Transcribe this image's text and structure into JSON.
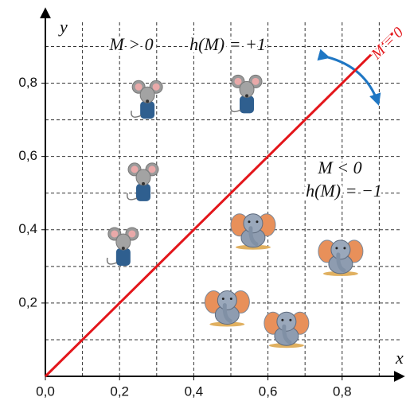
{
  "chart_data": {
    "type": "scatter",
    "x_label": "x",
    "y_label": "y",
    "xlim": [
      0,
      0.97
    ],
    "ylim": [
      0,
      0.99
    ],
    "xticks": [
      {
        "value": 0,
        "label": "0,0"
      },
      {
        "value": 0.2,
        "label": "0,2"
      },
      {
        "value": 0.4,
        "label": "0,4"
      },
      {
        "value": 0.6,
        "label": "0,6"
      },
      {
        "value": 0.8,
        "label": "0,8"
      }
    ],
    "yticks": [
      {
        "value": 0.2,
        "label": "0,2"
      },
      {
        "value": 0.4,
        "label": "0,4"
      },
      {
        "value": 0.6,
        "label": "0,6"
      },
      {
        "value": 0.8,
        "label": "0,8"
      }
    ],
    "xgrid": [
      0.1,
      0.2,
      0.3,
      0.4,
      0.5,
      0.6,
      0.7,
      0.8,
      0.9
    ],
    "ygrid": [
      0.1,
      0.2,
      0.3,
      0.4,
      0.5,
      0.6,
      0.7,
      0.8,
      0.9
    ],
    "series": [
      {
        "marker": "mouse",
        "x": [
          0.275,
          0.543,
          0.264,
          0.21
        ],
        "values": [
          0.755,
          0.77,
          0.53,
          0.354
        ]
      },
      {
        "marker": "elephant",
        "x": [
          0.56,
          0.796,
          0.49,
          0.65
        ],
        "values": [
          0.4,
          0.328,
          0.19,
          0.132
        ]
      }
    ],
    "boundary": {
      "label": "M = 0",
      "color": "#e3161b",
      "x": [
        0,
        0.95
      ],
      "values": [
        0,
        0.95
      ]
    },
    "annotations": [
      "M > 0",
      "h(M) = +1",
      "M < 0",
      "h(M) = −1"
    ]
  }
}
